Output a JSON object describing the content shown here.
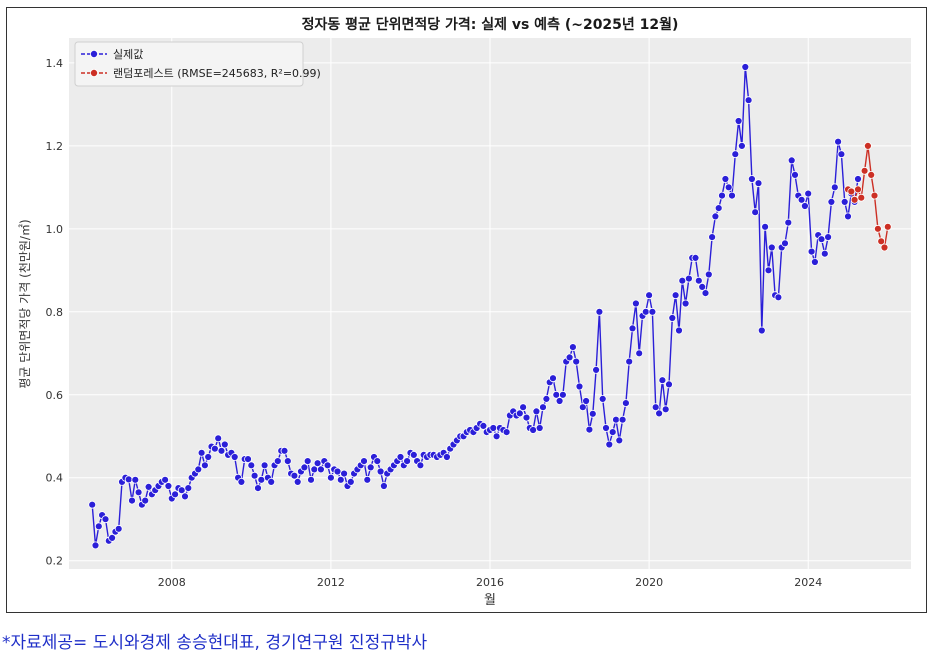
{
  "footnote": "*자료제공= 도시와경제 송승현대표, 경기연구원 진정규박사",
  "chart_data": {
    "type": "line",
    "title": "정자동 평균 단위면적당 가격: 실제 vs 예측 (~2025년 12월)",
    "xlabel": "월",
    "ylabel": "평균 단위면적당 가격 (천만원/㎡)",
    "x_ticks": [
      "2008",
      "2012",
      "2016",
      "2020",
      "2024"
    ],
    "y_ticks": [
      "0.2",
      "0.4",
      "0.6",
      "0.8",
      "1.0",
      "1.2",
      "1.4"
    ],
    "xlim": [
      "2005-06",
      "2026-08"
    ],
    "ylim": [
      0.18,
      1.46
    ],
    "grid": true,
    "legend_position": "upper-left",
    "colors": {
      "actual": "#2b1fd8",
      "forecast": "#cc2f24",
      "plot_bg": "#ececec"
    },
    "series": [
      {
        "name": "실제값",
        "key": "actual",
        "start": "2006-01",
        "values": [
          0.335,
          0.237,
          0.283,
          0.31,
          0.3,
          0.248,
          0.255,
          0.27,
          0.277,
          0.39,
          0.4,
          0.396,
          0.345,
          0.395,
          0.365,
          0.335,
          0.345,
          0.378,
          0.36,
          0.37,
          0.38,
          0.39,
          0.395,
          0.38,
          0.35,
          0.36,
          0.375,
          0.37,
          0.355,
          0.375,
          0.4,
          0.41,
          0.42,
          0.46,
          0.43,
          0.45,
          0.475,
          0.47,
          0.495,
          0.465,
          0.48,
          0.455,
          0.46,
          0.45,
          0.4,
          0.39,
          0.445,
          0.445,
          0.43,
          0.405,
          0.375,
          0.395,
          0.43,
          0.4,
          0.39,
          0.43,
          0.44,
          0.465,
          0.465,
          0.44,
          0.41,
          0.405,
          0.39,
          0.415,
          0.425,
          0.44,
          0.395,
          0.42,
          0.435,
          0.42,
          0.44,
          0.43,
          0.4,
          0.42,
          0.415,
          0.395,
          0.41,
          0.38,
          0.39,
          0.41,
          0.42,
          0.43,
          0.44,
          0.395,
          0.425,
          0.45,
          0.44,
          0.415,
          0.38,
          0.41,
          0.42,
          0.43,
          0.44,
          0.45,
          0.43,
          0.44,
          0.46,
          0.455,
          0.44,
          0.43,
          0.455,
          0.45,
          0.455,
          0.455,
          0.45,
          0.455,
          0.46,
          0.45,
          0.47,
          0.48,
          0.49,
          0.5,
          0.5,
          0.51,
          0.515,
          0.51,
          0.52,
          0.53,
          0.525,
          0.51,
          0.515,
          0.52,
          0.5,
          0.52,
          0.515,
          0.51,
          0.55,
          0.56,
          0.55,
          0.555,
          0.57,
          0.545,
          0.52,
          0.515,
          0.56,
          0.52,
          0.57,
          0.59,
          0.63,
          0.64,
          0.6,
          0.585,
          0.6,
          0.68,
          0.69,
          0.715,
          0.68,
          0.62,
          0.57,
          0.585,
          0.516,
          0.554,
          0.66,
          0.8,
          0.59,
          0.52,
          0.48,
          0.51,
          0.54,
          0.49,
          0.54,
          0.58,
          0.68,
          0.76,
          0.82,
          0.7,
          0.79,
          0.8,
          0.84,
          0.8,
          0.57,
          0.555,
          0.635,
          0.565,
          0.625,
          0.785,
          0.84,
          0.755,
          0.875,
          0.82,
          0.88,
          0.93,
          0.93,
          0.875,
          0.86,
          0.845,
          0.89,
          0.98,
          1.03,
          1.05,
          1.08,
          1.12,
          1.1,
          1.08,
          1.18,
          1.26,
          1.2,
          1.39,
          1.31,
          1.12,
          1.04,
          1.11,
          0.755,
          1.005,
          0.9,
          0.955,
          0.84,
          0.835,
          0.955,
          0.965,
          1.015,
          1.165,
          1.13,
          1.08,
          1.07,
          1.055,
          1.085,
          0.945,
          0.92,
          0.985,
          0.975,
          0.94,
          0.98,
          1.065,
          1.1,
          1.21,
          1.18,
          1.065,
          1.03,
          1.085,
          1.065,
          1.12
        ]
      },
      {
        "name": "랜덤포레스트 (RMSE=245683, R²=0.99)",
        "key": "forecast",
        "start": "2025-01",
        "values": [
          1.095,
          1.09,
          1.07,
          1.095,
          1.075,
          1.14,
          1.2,
          1.13,
          1.08,
          1.0,
          0.97,
          0.955,
          1.005
        ]
      }
    ]
  }
}
